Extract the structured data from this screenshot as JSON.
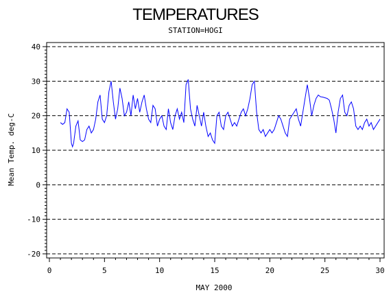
{
  "chart_data": {
    "type": "line",
    "title": "TEMPERATURES",
    "subtitle": "STATION=HOGI",
    "xlabel": "MAY 2000",
    "ylabel": "Mean Temp. deg-C",
    "xlim": [
      0,
      30
    ],
    "ylim": [
      -20,
      40
    ],
    "xticks": [
      0,
      5,
      10,
      15,
      20,
      25,
      30
    ],
    "yticks": [
      -20,
      -10,
      0,
      10,
      20,
      30,
      40
    ],
    "grid": "dashed horizontal lines at major y ticks",
    "line_color": "#0000ff",
    "series": [
      {
        "x": [
          1.0,
          1.2,
          1.4,
          1.6,
          1.8,
          2.0,
          2.1,
          2.2,
          2.4,
          2.6,
          2.8,
          3.0,
          3.2,
          3.4,
          3.6,
          3.8,
          4.0,
          4.2,
          4.4,
          4.6,
          4.8,
          5.0,
          5.2,
          5.4,
          5.6,
          5.8,
          6.0,
          6.2,
          6.4,
          6.6,
          6.8,
          7.0,
          7.2,
          7.4,
          7.6,
          7.8,
          8.0,
          8.2,
          8.4,
          8.6,
          8.8,
          9.0,
          9.2,
          9.4,
          9.6,
          9.8,
          10.0,
          10.2,
          10.4,
          10.6,
          10.8,
          11.0,
          11.2,
          11.4,
          11.6,
          11.8,
          12.0,
          12.2,
          12.4,
          12.6,
          12.8,
          13.0,
          13.2,
          13.4,
          13.6,
          13.8,
          14.0,
          14.2,
          14.4,
          14.6,
          14.8,
          15.0,
          15.2,
          15.4,
          15.6,
          15.8,
          16.0,
          16.2,
          16.4,
          16.6,
          16.8,
          17.0,
          17.2,
          17.4,
          17.6,
          17.8,
          18.0,
          18.2,
          18.4,
          18.6,
          18.8,
          19.0,
          19.2,
          19.4,
          19.6,
          19.8,
          20.0,
          20.2,
          20.4,
          20.6,
          20.8,
          21.0,
          21.2,
          21.4,
          21.6,
          21.8,
          22.0,
          22.2,
          22.4,
          22.6,
          22.8,
          23.0,
          23.2,
          23.4,
          23.6,
          23.8,
          24.0,
          24.2,
          24.4,
          24.6,
          24.8,
          25.0,
          25.2,
          25.4,
          25.6,
          25.8,
          26.0,
          26.2,
          26.4,
          26.6,
          26.8,
          27.0,
          27.2,
          27.4,
          27.6,
          27.8,
          28.0,
          28.2,
          28.4,
          28.6,
          28.8,
          29.0,
          29.2,
          29.4,
          29.6,
          29.8,
          30.0
        ],
        "values": [
          18,
          17.5,
          18,
          22,
          21,
          12,
          11,
          12,
          17,
          18.5,
          13,
          12.5,
          13,
          16,
          17,
          15,
          16,
          19,
          24,
          26,
          19,
          18,
          20,
          27,
          30,
          24,
          19,
          22,
          28,
          25,
          20,
          21,
          24,
          20,
          26,
          22,
          25,
          21,
          24,
          26,
          22,
          19,
          18,
          23,
          22,
          17,
          19,
          20,
          17,
          16,
          22,
          18,
          16,
          20,
          22,
          19,
          21,
          18,
          29,
          30.5,
          22,
          19,
          17,
          23,
          20,
          17,
          21,
          17,
          14,
          15,
          13,
          12,
          20,
          21,
          17,
          16,
          20,
          21,
          19,
          17,
          18,
          17,
          19,
          21,
          22,
          20,
          22,
          25,
          29,
          30,
          21,
          16,
          15,
          16,
          14,
          15,
          16,
          15,
          16,
          18,
          20,
          19,
          17,
          15,
          14,
          19,
          20,
          21,
          22,
          19,
          17,
          21,
          25,
          29,
          25,
          20,
          23,
          25,
          26,
          25.5,
          25.4,
          25.2,
          25,
          24.5,
          22,
          19,
          15,
          21,
          25,
          26,
          21,
          20,
          23,
          24,
          22,
          17,
          16,
          17,
          16,
          18,
          19,
          17,
          18,
          16,
          17,
          18,
          19
        ]
      }
    ]
  }
}
